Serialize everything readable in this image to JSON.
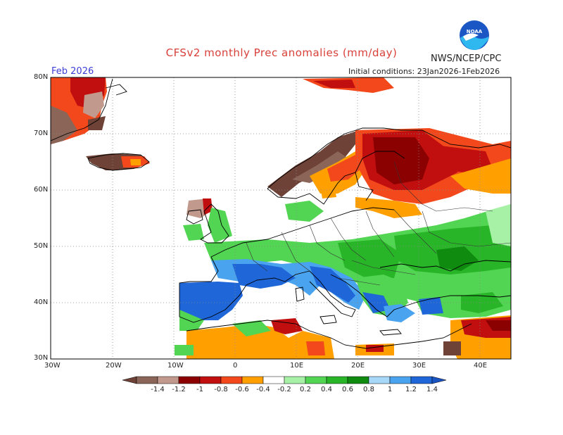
{
  "title": "CFSv2 monthly Prec anomalies (mm/day)",
  "org": "NWS/NCEP/CPC",
  "logo_text": "NOAA",
  "month": "Feb 2026",
  "initial_conditions": "Initial conditions: 23Jan2026-1Feb2026",
  "lat_labels": [
    "80N",
    "70N",
    "60N",
    "50N",
    "40N",
    "30N"
  ],
  "lon_labels": [
    "30W",
    "20W",
    "10W",
    "0",
    "10E",
    "20E",
    "30E",
    "40E"
  ],
  "legend": {
    "labels": [
      "-1.4",
      "-1.2",
      "-1",
      "-0.8",
      "-0.6",
      "-0.4",
      "-0.2",
      "0.2",
      "0.4",
      "0.6",
      "0.8",
      "1",
      "1.2",
      "1.4"
    ],
    "colors": [
      "#6e4236",
      "#8a6558",
      "#c29a8d",
      "#8b0000",
      "#c10f0f",
      "#f2481b",
      "#ff9f00",
      "#ffffff",
      "#a6f1a6",
      "#52d552",
      "#28b628",
      "#0f8c0f",
      "#a8d8f8",
      "#4aa3ee",
      "#1f66d8",
      "#1a53c2"
    ]
  },
  "palette": {
    "brown_dark": "#6e4236",
    "brown": "#8a6558",
    "brown_light": "#c29a8d",
    "red_dark": "#8b0000",
    "red": "#c10f0f",
    "orange_red": "#f2481b",
    "orange": "#ff9f00",
    "green_light": "#a6f1a6",
    "green": "#52d552",
    "green_mid": "#28b628",
    "green_dark": "#0f8c0f",
    "blue_light": "#a8d8f8",
    "blue": "#4aa3ee",
    "blue_dark": "#1f66d8"
  }
}
